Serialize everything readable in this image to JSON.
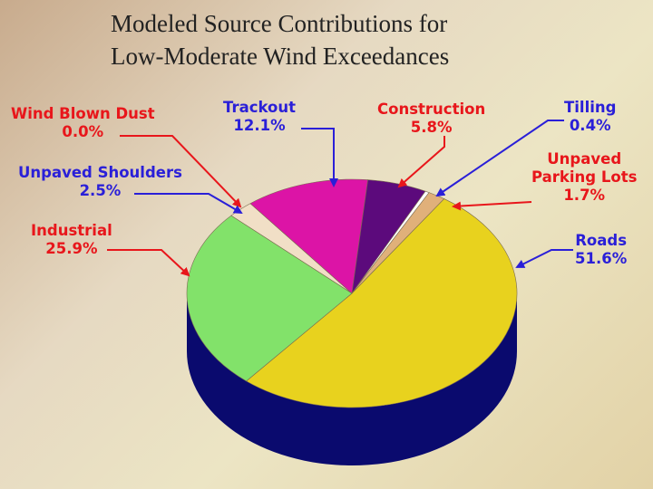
{
  "title_lines": [
    "Modeled Source Contributions for",
    "Low-Moderate Wind Exceedances"
  ],
  "colors": {
    "red_label": "#e8161b",
    "blue_label": "#2a1fd8",
    "side_wall": "#0a0a6e"
  },
  "chart_data": {
    "type": "pie",
    "title": "Modeled Source Contributions for Low-Moderate Wind Exceedances",
    "slices": [
      {
        "label": "Wind Blown Dust",
        "value": 0.0,
        "display": "0.0%",
        "color": "#f0e0c8"
      },
      {
        "label": "Unpaved Shoulders",
        "value": 2.5,
        "display": "2.5%",
        "color": "#f1dfc6"
      },
      {
        "label": "Trackout",
        "value": 12.1,
        "display": "12.1%",
        "color": "#dc14a6"
      },
      {
        "label": "Construction",
        "value": 5.8,
        "display": "5.8%",
        "color": "#5c0a7c"
      },
      {
        "label": "Tilling",
        "value": 0.4,
        "display": "0.4%",
        "color": "#ffffff"
      },
      {
        "label": "Unpaved Parking Lots",
        "value": 1.7,
        "display": "1.7%",
        "color": "#e0b07a"
      },
      {
        "label": "Roads",
        "value": 51.6,
        "display": "51.6%",
        "color": "#e8d21e"
      },
      {
        "label": "Industrial",
        "value": 25.9,
        "display": "25.9%",
        "color": "#82e26a"
      }
    ]
  }
}
